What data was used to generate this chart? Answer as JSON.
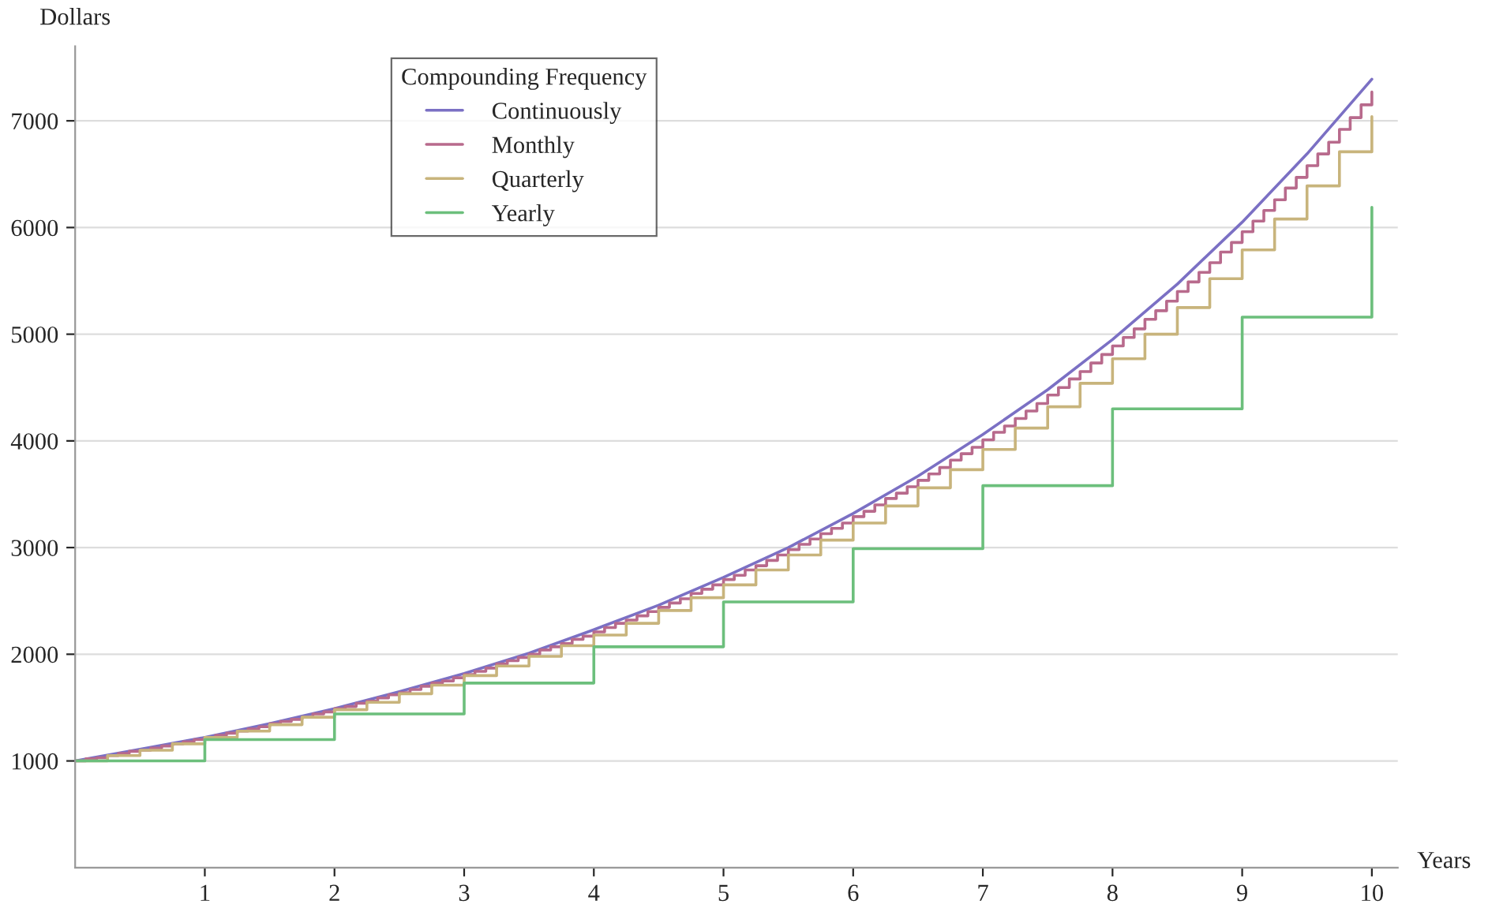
{
  "chart_data": {
    "type": "step",
    "xlabel": "Years",
    "ylabel": "Dollars",
    "legend_title": "Compounding Frequency",
    "legend": "top left",
    "grid": "y",
    "xlim": [
      0,
      10.2
    ],
    "ylim": [
      0,
      7700
    ],
    "xticks": [
      1,
      2,
      3,
      4,
      5,
      6,
      7,
      8,
      9,
      10
    ],
    "yticks": [
      1000,
      2000,
      3000,
      4000,
      5000,
      6000,
      7000
    ],
    "series": [
      {
        "name": "Continuously",
        "type": "line",
        "color": "#7b70c4",
        "x": [
          0,
          0.5,
          1,
          1.5,
          2,
          2.5,
          3,
          3.5,
          4,
          4.5,
          5,
          5.5,
          6,
          6.5,
          7,
          7.5,
          8,
          8.5,
          9,
          9.5,
          10
        ],
        "values": [
          1000,
          1110,
          1220,
          1350,
          1490,
          1650,
          1820,
          2010,
          2230,
          2460,
          2720,
          3000,
          3320,
          3670,
          4060,
          4480,
          4950,
          5470,
          6050,
          6690,
          7390
        ]
      },
      {
        "name": "Monthly",
        "color": "#b86a8c",
        "x": [
          0,
          0.083,
          0.167,
          0.25,
          0.333,
          0.417,
          0.5,
          0.583,
          0.667,
          0.75,
          0.833,
          0.917,
          1,
          1.083,
          1.167,
          1.25,
          1.333,
          1.417,
          1.5,
          1.583,
          1.667,
          1.75,
          1.833,
          1.917,
          2,
          2.083,
          2.167,
          2.25,
          2.333,
          2.417,
          2.5,
          2.583,
          2.667,
          2.75,
          2.833,
          2.917,
          3,
          3.083,
          3.167,
          3.25,
          3.333,
          3.417,
          3.5,
          3.583,
          3.667,
          3.75,
          3.833,
          3.917,
          4,
          4.083,
          4.167,
          4.25,
          4.333,
          4.417,
          4.5,
          4.583,
          4.667,
          4.75,
          4.833,
          4.917,
          5,
          5.083,
          5.167,
          5.25,
          5.333,
          5.417,
          5.5,
          5.583,
          5.667,
          5.75,
          5.833,
          5.917,
          6,
          6.083,
          6.167,
          6.25,
          6.333,
          6.417,
          6.5,
          6.583,
          6.667,
          6.75,
          6.833,
          6.917,
          7,
          7.083,
          7.167,
          7.25,
          7.333,
          7.417,
          7.5,
          7.583,
          7.667,
          7.75,
          7.833,
          7.917,
          8,
          8.083,
          8.167,
          8.25,
          8.333,
          8.417,
          8.5,
          8.583,
          8.667,
          8.75,
          8.833,
          8.917,
          9,
          9.083,
          9.167,
          9.25,
          9.333,
          9.417,
          9.5,
          9.583,
          9.667,
          9.75,
          9.833,
          9.917,
          10
        ],
        "values": [
          1000,
          1020,
          1030,
          1050,
          1070,
          1090,
          1100,
          1120,
          1140,
          1160,
          1180,
          1200,
          1220,
          1240,
          1260,
          1280,
          1300,
          1320,
          1350,
          1370,
          1390,
          1410,
          1440,
          1460,
          1490,
          1510,
          1540,
          1560,
          1590,
          1620,
          1640,
          1670,
          1700,
          1730,
          1750,
          1780,
          1810,
          1840,
          1870,
          1910,
          1940,
          1970,
          2000,
          2040,
          2070,
          2100,
          2140,
          2170,
          2210,
          2250,
          2290,
          2320,
          2360,
          2400,
          2440,
          2480,
          2520,
          2570,
          2610,
          2650,
          2700,
          2740,
          2790,
          2830,
          2880,
          2930,
          2980,
          3030,
          3080,
          3130,
          3180,
          3230,
          3290,
          3340,
          3400,
          3460,
          3510,
          3570,
          3630,
          3690,
          3750,
          3820,
          3880,
          3940,
          4010,
          4080,
          4140,
          4210,
          4280,
          4350,
          4430,
          4500,
          4580,
          4650,
          4730,
          4810,
          4890,
          4970,
          5050,
          5140,
          5220,
          5310,
          5400,
          5490,
          5580,
          5670,
          5770,
          5860,
          5960,
          6060,
          6160,
          6260,
          6370,
          6470,
          6580,
          6690,
          6800,
          6920,
          7030,
          7150,
          7270
        ]
      },
      {
        "name": "Quarterly",
        "color": "#c8b47c",
        "x": [
          0,
          0.25,
          0.5,
          0.75,
          1,
          1.25,
          1.5,
          1.75,
          2,
          2.25,
          2.5,
          2.75,
          3,
          3.25,
          3.5,
          3.75,
          4,
          4.25,
          4.5,
          4.75,
          5,
          5.25,
          5.5,
          5.75,
          6,
          6.25,
          6.5,
          6.75,
          7,
          7.25,
          7.5,
          7.75,
          8,
          8.25,
          8.5,
          8.75,
          9,
          9.25,
          9.5,
          9.75,
          10
        ],
        "values": [
          1000,
          1050,
          1100,
          1160,
          1220,
          1280,
          1340,
          1410,
          1480,
          1550,
          1630,
          1710,
          1800,
          1890,
          1980,
          2080,
          2180,
          2290,
          2410,
          2530,
          2650,
          2790,
          2930,
          3070,
          3230,
          3390,
          3560,
          3730,
          3920,
          4120,
          4320,
          4540,
          4770,
          5000,
          5250,
          5520,
          5790,
          6080,
          6390,
          6710,
          7040
        ]
      },
      {
        "name": "Yearly",
        "color": "#6cbf7c",
        "x": [
          0,
          1,
          2,
          3,
          4,
          5,
          6,
          7,
          8,
          9,
          10
        ],
        "values": [
          1000,
          1200,
          1440,
          1730,
          2070,
          2490,
          2990,
          3580,
          4300,
          5160,
          6190
        ]
      }
    ]
  }
}
